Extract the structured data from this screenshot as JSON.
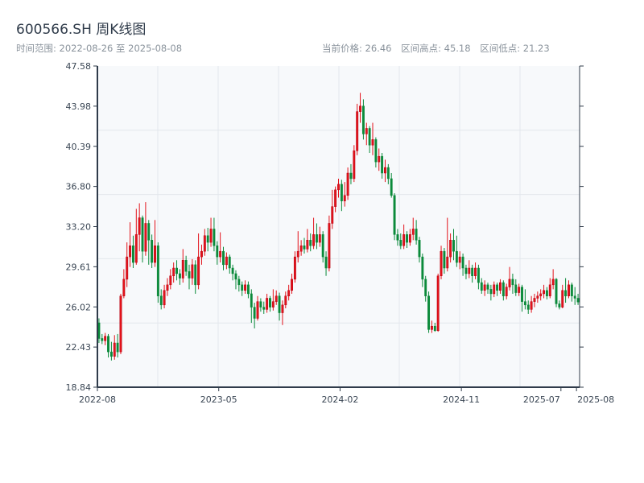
{
  "header": {
    "title": "600566.SH 周K线图",
    "range_label": "时间范围: 2022-08-26 至 2025-08-08",
    "current_price": "当前价格: 26.46",
    "range_high": "区间高点: 45.18",
    "range_low": "区间低点: 21.23"
  },
  "chart_data": {
    "type": "candlestick",
    "title": "600566.SH 周K线图",
    "start_date": "2022-08-26",
    "end_date": "2025-08-08",
    "interval": "weekly",
    "ylim": [
      18.84,
      47.58
    ],
    "y_ticks": [
      "47.58",
      "43.98",
      "40.39",
      "36.80",
      "33.20",
      "29.61",
      "26.02",
      "22.43",
      "18.84"
    ],
    "x_ticks": [
      {
        "i": 0,
        "label": "2022-08"
      },
      {
        "i": 39,
        "label": "2023-05"
      },
      {
        "i": 78,
        "label": "2024-02"
      },
      {
        "i": 117,
        "label": "2024-11"
      },
      {
        "i": 149,
        "label": "2025-07"
      },
      {
        "i": 154,
        "label": "2025-08"
      }
    ],
    "colors": {
      "up": "#e3131b",
      "down": "#0b8a3a",
      "background": "#f7f9fb",
      "grid": "#e3e7ec",
      "axis": "#2f3b4a"
    },
    "ohlc_fields": [
      "open",
      "close",
      "low",
      "high"
    ],
    "ohlc": [
      [
        24.6,
        23.2,
        22.8,
        25.0
      ],
      [
        23.2,
        23.0,
        22.7,
        23.6
      ],
      [
        23.0,
        23.4,
        22.6,
        23.7
      ],
      [
        23.4,
        22.0,
        21.5,
        23.6
      ],
      [
        22.0,
        21.6,
        21.23,
        22.9
      ],
      [
        21.6,
        22.8,
        21.3,
        23.5
      ],
      [
        22.8,
        22.0,
        21.5,
        23.6
      ],
      [
        22.0,
        27.0,
        21.8,
        27.2
      ],
      [
        27.0,
        28.5,
        26.8,
        29.4
      ],
      [
        28.5,
        30.5,
        27.8,
        31.8
      ],
      [
        30.5,
        31.5,
        29.6,
        33.6
      ],
      [
        31.5,
        30.0,
        29.5,
        32.4
      ],
      [
        30.0,
        32.5,
        29.8,
        34.8
      ],
      [
        32.5,
        34.0,
        31.0,
        35.3
      ],
      [
        34.0,
        31.0,
        30.0,
        34.2
      ],
      [
        31.0,
        33.5,
        30.6,
        35.4
      ],
      [
        33.5,
        32.0,
        29.8,
        33.8
      ],
      [
        32.0,
        30.0,
        29.5,
        32.5
      ],
      [
        30.0,
        31.5,
        29.6,
        33.8
      ],
      [
        31.5,
        27.0,
        26.4,
        31.8
      ],
      [
        27.0,
        26.2,
        25.8,
        27.6
      ],
      [
        26.2,
        27.5,
        25.9,
        28.0
      ],
      [
        27.5,
        28.0,
        27.0,
        28.6
      ],
      [
        28.0,
        28.8,
        27.6,
        29.4
      ],
      [
        28.8,
        29.5,
        28.2,
        30.0
      ],
      [
        29.5,
        29.0,
        28.4,
        30.2
      ],
      [
        29.0,
        28.6,
        28.0,
        29.4
      ],
      [
        28.6,
        30.2,
        28.2,
        31.2
      ],
      [
        30.2,
        29.2,
        28.8,
        30.6
      ],
      [
        29.2,
        28.6,
        27.6,
        29.8
      ],
      [
        28.6,
        29.8,
        28.0,
        30.3
      ],
      [
        29.8,
        28.0,
        27.2,
        30.2
      ],
      [
        28.0,
        30.5,
        27.6,
        32.6
      ],
      [
        30.5,
        31.0,
        29.8,
        31.6
      ],
      [
        31.0,
        32.4,
        30.6,
        33.0
      ],
      [
        32.4,
        31.8,
        31.0,
        33.1
      ],
      [
        31.8,
        33.0,
        31.4,
        34.0
      ],
      [
        33.0,
        31.5,
        31.0,
        34.0
      ],
      [
        31.5,
        30.5,
        29.8,
        31.9
      ],
      [
        30.5,
        31.0,
        30.0,
        32.7
      ],
      [
        31.0,
        29.8,
        29.3,
        31.4
      ],
      [
        29.8,
        30.5,
        29.4,
        30.9
      ],
      [
        30.5,
        29.5,
        29.0,
        30.7
      ],
      [
        29.5,
        29.0,
        28.4,
        29.8
      ],
      [
        29.0,
        28.5,
        27.6,
        29.3
      ],
      [
        28.5,
        28.0,
        27.4,
        28.8
      ],
      [
        28.0,
        27.5,
        27.0,
        28.3
      ],
      [
        27.5,
        28.0,
        27.2,
        28.4
      ],
      [
        28.0,
        27.2,
        26.8,
        28.3
      ],
      [
        27.2,
        26.0,
        24.6,
        27.6
      ],
      [
        26.0,
        25.0,
        24.1,
        26.4
      ],
      [
        25.0,
        26.5,
        24.8,
        27.0
      ],
      [
        26.5,
        26.0,
        25.6,
        26.8
      ],
      [
        26.0,
        25.8,
        25.4,
        26.5
      ],
      [
        25.8,
        26.8,
        25.5,
        27.2
      ],
      [
        26.8,
        26.0,
        25.6,
        27.0
      ],
      [
        26.0,
        26.5,
        25.7,
        27.6
      ],
      [
        26.5,
        27.0,
        26.2,
        27.5
      ],
      [
        27.0,
        25.5,
        24.8,
        27.3
      ],
      [
        25.5,
        26.2,
        24.4,
        26.6
      ],
      [
        26.2,
        27.0,
        25.9,
        27.4
      ],
      [
        27.0,
        27.5,
        26.6,
        28.0
      ],
      [
        27.5,
        28.5,
        27.2,
        29.0
      ],
      [
        28.5,
        30.5,
        28.2,
        31.0
      ],
      [
        30.5,
        31.0,
        30.0,
        32.8
      ],
      [
        31.0,
        31.5,
        30.6,
        32.0
      ],
      [
        31.5,
        31.2,
        30.8,
        32.2
      ],
      [
        31.2,
        32.0,
        30.9,
        33.0
      ],
      [
        32.0,
        31.5,
        31.0,
        32.6
      ],
      [
        31.5,
        32.5,
        31.2,
        34.0
      ],
      [
        32.5,
        31.8,
        31.2,
        33.5
      ],
      [
        31.8,
        32.5,
        31.4,
        33.2
      ],
      [
        32.5,
        30.5,
        30.0,
        32.8
      ],
      [
        30.5,
        29.5,
        28.8,
        31.0
      ],
      [
        29.5,
        33.5,
        29.2,
        34.2
      ],
      [
        33.5,
        35.0,
        33.0,
        36.5
      ],
      [
        35.0,
        36.5,
        34.5,
        36.8
      ],
      [
        36.5,
        37.0,
        35.8,
        37.5
      ],
      [
        37.0,
        35.5,
        34.6,
        37.4
      ],
      [
        35.5,
        36.0,
        35.0,
        37.2
      ],
      [
        36.0,
        38.0,
        35.6,
        38.5
      ],
      [
        38.0,
        37.5,
        37.0,
        38.8
      ],
      [
        37.5,
        40.0,
        37.2,
        40.5
      ],
      [
        40.0,
        43.5,
        39.6,
        44.2
      ],
      [
        43.5,
        44.0,
        42.5,
        45.18
      ],
      [
        44.0,
        41.5,
        41.0,
        44.6
      ],
      [
        41.5,
        42.0,
        40.5,
        42.5
      ],
      [
        42.0,
        40.5,
        39.8,
        42.2
      ],
      [
        40.5,
        41.0,
        39.6,
        42.5
      ],
      [
        41.0,
        39.0,
        38.5,
        41.2
      ],
      [
        39.0,
        39.5,
        38.2,
        40.2
      ],
      [
        39.5,
        38.0,
        37.5,
        39.8
      ],
      [
        38.0,
        38.5,
        37.2,
        39.2
      ],
      [
        38.5,
        37.5,
        37.0,
        38.8
      ],
      [
        37.5,
        36.0,
        35.8,
        38.0
      ],
      [
        36.0,
        32.5,
        32.0,
        36.2
      ],
      [
        32.5,
        32.0,
        31.5,
        33.0
      ],
      [
        32.0,
        31.5,
        31.2,
        32.6
      ],
      [
        31.5,
        32.5,
        31.2,
        33.4
      ],
      [
        32.5,
        31.8,
        31.3,
        32.8
      ],
      [
        31.8,
        32.5,
        31.5,
        33.0
      ],
      [
        32.5,
        33.0,
        32.0,
        34.0
      ],
      [
        33.0,
        32.0,
        31.6,
        33.8
      ],
      [
        32.0,
        30.5,
        30.0,
        32.3
      ],
      [
        30.5,
        28.5,
        27.8,
        30.8
      ],
      [
        28.5,
        27.0,
        26.5,
        28.8
      ],
      [
        27.0,
        24.0,
        23.7,
        27.4
      ],
      [
        24.0,
        24.3,
        23.7,
        24.8
      ],
      [
        24.3,
        23.9,
        23.8,
        24.6
      ],
      [
        23.9,
        28.8,
        23.8,
        29.0
      ],
      [
        28.8,
        31.0,
        28.5,
        31.5
      ],
      [
        31.0,
        29.5,
        29.0,
        31.3
      ],
      [
        29.5,
        30.5,
        29.2,
        34.0
      ],
      [
        30.5,
        32.0,
        30.0,
        32.6
      ],
      [
        32.0,
        31.0,
        30.2,
        33.0
      ],
      [
        31.0,
        30.0,
        29.6,
        32.4
      ],
      [
        30.0,
        30.5,
        29.4,
        31.0
      ],
      [
        30.5,
        29.5,
        28.8,
        30.8
      ],
      [
        29.5,
        29.0,
        28.5,
        29.8
      ],
      [
        29.0,
        29.5,
        28.6,
        30.2
      ],
      [
        29.5,
        28.8,
        28.2,
        29.8
      ],
      [
        28.8,
        29.5,
        28.5,
        30.0
      ],
      [
        29.5,
        28.2,
        27.6,
        29.8
      ],
      [
        28.2,
        27.5,
        27.2,
        28.6
      ],
      [
        27.5,
        28.0,
        27.0,
        28.4
      ],
      [
        28.0,
        27.6,
        27.2,
        28.2
      ],
      [
        27.6,
        27.2,
        26.6,
        28.0
      ],
      [
        27.2,
        28.0,
        26.9,
        28.3
      ],
      [
        28.0,
        27.5,
        27.0,
        28.2
      ],
      [
        27.5,
        28.2,
        27.2,
        28.5
      ],
      [
        28.2,
        27.0,
        26.6,
        28.4
      ],
      [
        27.0,
        27.8,
        26.7,
        28.1
      ],
      [
        27.8,
        28.5,
        27.5,
        29.6
      ],
      [
        28.5,
        28.0,
        27.2,
        29.0
      ],
      [
        28.0,
        27.3,
        27.0,
        28.5
      ],
      [
        27.3,
        27.8,
        27.0,
        28.1
      ],
      [
        27.8,
        26.5,
        25.6,
        28.0
      ],
      [
        26.5,
        26.2,
        25.8,
        27.6
      ],
      [
        26.2,
        25.8,
        25.4,
        26.6
      ],
      [
        25.8,
        26.5,
        25.5,
        27.0
      ],
      [
        26.5,
        26.8,
        26.0,
        27.2
      ],
      [
        26.8,
        27.0,
        26.4,
        27.4
      ],
      [
        27.0,
        27.2,
        26.6,
        27.6
      ],
      [
        27.2,
        27.5,
        26.8,
        28.0
      ],
      [
        27.5,
        27.0,
        26.7,
        27.8
      ],
      [
        27.0,
        28.0,
        26.8,
        28.6
      ],
      [
        28.0,
        28.5,
        27.6,
        29.4
      ],
      [
        28.5,
        26.3,
        26.0,
        28.6
      ],
      [
        26.3,
        26.0,
        25.8,
        26.6
      ],
      [
        26.0,
        27.5,
        25.9,
        28.0
      ],
      [
        27.5,
        27.0,
        26.4,
        28.6
      ],
      [
        27.0,
        28.0,
        26.8,
        28.4
      ],
      [
        28.0,
        27.0,
        26.5,
        28.2
      ],
      [
        27.0,
        26.8,
        26.2,
        27.8
      ],
      [
        26.8,
        26.46,
        26.2,
        27.2
      ]
    ]
  }
}
